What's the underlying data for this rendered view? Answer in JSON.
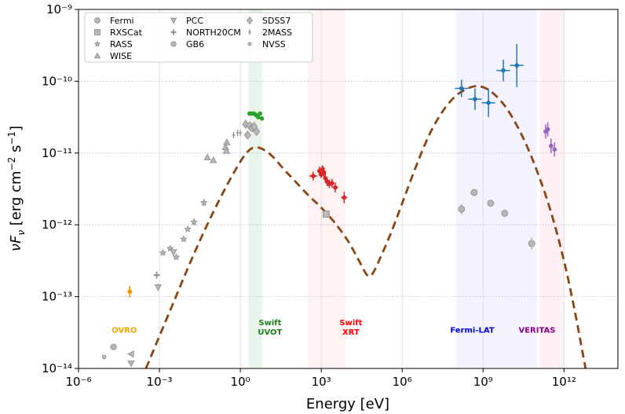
{
  "chart_data": {
    "type": "scatter",
    "xlabel": "Energy [eV]",
    "ylabel_parts": {
      "a": "νF",
      "sub": "ν",
      "b": "  [erg cm",
      "sup1": "−2",
      "c": " s",
      "sup2": "−1",
      "d": "]"
    },
    "x_log_range": [
      -6,
      14
    ],
    "y_log_range": [
      -14,
      -9
    ],
    "x_ticks": [
      {
        "exp": -6,
        "label": "10⁻⁶"
      },
      {
        "exp": -3,
        "label": "10⁻³"
      },
      {
        "exp": 0,
        "label": "10⁰"
      },
      {
        "exp": 3,
        "label": "10³"
      },
      {
        "exp": 6,
        "label": "10⁶"
      },
      {
        "exp": 9,
        "label": "10⁹"
      },
      {
        "exp": 12,
        "label": "10¹²"
      }
    ],
    "y_ticks": [
      {
        "exp": -14,
        "label": "10⁻¹⁴"
      },
      {
        "exp": -13,
        "label": "10⁻¹³"
      },
      {
        "exp": -12,
        "label": "10⁻¹²"
      },
      {
        "exp": -11,
        "label": "10⁻¹¹"
      },
      {
        "exp": -10,
        "label": "10⁻¹⁰"
      },
      {
        "exp": -9,
        "label": "10⁻⁹"
      }
    ],
    "grid": true,
    "legend_position": "top-left",
    "legend": [
      {
        "label": "Fermi",
        "marker": "circle"
      },
      {
        "label": "PCC",
        "marker": "down-tri"
      },
      {
        "label": "SDSS7",
        "marker": "diamond"
      },
      {
        "label": "RXSCat",
        "marker": "square"
      },
      {
        "label": "NORTH20CM",
        "marker": "plus"
      },
      {
        "label": "2MASS",
        "marker": "vline"
      },
      {
        "label": "RASS",
        "marker": "star"
      },
      {
        "label": "GB6",
        "marker": "hexagon"
      },
      {
        "label": "NVSS",
        "marker": "dot"
      },
      {
        "label": "WISE",
        "marker": "up-tri"
      }
    ],
    "bands": [
      {
        "label_lines": [
          "Swift",
          "UVOT"
        ],
        "x_log": [
          0.3,
          0.8
        ],
        "fill": "#2ca02c",
        "opacity": 0.1,
        "text_color": "#1a7f1a",
        "text_x_log": 1.1,
        "text_y_log": -13.4
      },
      {
        "label_lines": [
          "Swift",
          "XRT"
        ],
        "x_log": [
          2.5,
          3.9
        ],
        "fill": "#ff4d4d",
        "opacity": 0.07,
        "text_color": "#ff0000",
        "text_x_log": 4.1,
        "text_y_log": -13.4
      },
      {
        "label_lines": [
          "Fermi-LAT"
        ],
        "x_log": [
          8.0,
          11.0
        ],
        "fill": "#6666ff",
        "opacity": 0.08,
        "text_color": "#0000dd",
        "text_x_log": 8.6,
        "text_y_log": -13.5
      },
      {
        "label_lines": [
          "VERITAS"
        ],
        "x_log": [
          11.1,
          12.0
        ],
        "fill": "#ff6b9a",
        "opacity": 0.1,
        "text_color": "#8b008b",
        "text_x_log": 11.0,
        "text_y_log": -13.5
      }
    ],
    "band_labels_extra": [
      {
        "text": "OVRO",
        "color": "#ffa500",
        "text_x_log": -4.3,
        "text_y_log": -13.5
      }
    ],
    "model_curve": {
      "color": "#8b4513",
      "points": [
        [
          -3.5,
          -14.0
        ],
        [
          -3.0,
          -13.55
        ],
        [
          -2.5,
          -13.1
        ],
        [
          -2.0,
          -12.65
        ],
        [
          -1.5,
          -12.22
        ],
        [
          -1.0,
          -11.82
        ],
        [
          -0.5,
          -11.45
        ],
        [
          0.0,
          -11.12
        ],
        [
          0.3,
          -10.97
        ],
        [
          0.55,
          -10.92
        ],
        [
          0.85,
          -10.95
        ],
        [
          1.2,
          -11.05
        ],
        [
          1.6,
          -11.22
        ],
        [
          2.0,
          -11.38
        ],
        [
          2.5,
          -11.58
        ],
        [
          3.0,
          -11.76
        ],
        [
          3.5,
          -11.97
        ],
        [
          4.0,
          -12.23
        ],
        [
          4.4,
          -12.5
        ],
        [
          4.7,
          -12.7
        ],
        [
          4.9,
          -12.68
        ],
        [
          5.2,
          -12.45
        ],
        [
          5.6,
          -12.1
        ],
        [
          6.0,
          -11.7
        ],
        [
          6.5,
          -11.2
        ],
        [
          7.0,
          -10.75
        ],
        [
          7.5,
          -10.42
        ],
        [
          8.0,
          -10.2
        ],
        [
          8.5,
          -10.09
        ],
        [
          8.85,
          -10.07
        ],
        [
          9.2,
          -10.12
        ],
        [
          9.6,
          -10.25
        ],
        [
          10.0,
          -10.45
        ],
        [
          10.5,
          -10.8
        ],
        [
          11.0,
          -11.25
        ],
        [
          11.5,
          -11.8
        ],
        [
          12.0,
          -12.5
        ],
        [
          12.4,
          -13.2
        ],
        [
          12.7,
          -13.8
        ],
        [
          12.8,
          -14.0
        ]
      ]
    },
    "archival_points": [
      {
        "catalog": "NVSS",
        "marker": "dot",
        "x": -5.05,
        "y": -13.84,
        "yerr": 0.0
      },
      {
        "catalog": "GB6",
        "marker": "hexagon",
        "x": -4.7,
        "y": -13.7,
        "yerr": 0.0
      },
      {
        "catalog": "PCC",
        "marker": "down-tri",
        "x": -4.05,
        "y": -13.93,
        "yerr": 0.0
      },
      {
        "catalog": "PCC",
        "marker": "left-tri",
        "x": -4.05,
        "y": -13.8,
        "yerr": 0.0
      },
      {
        "catalog": "NORTH20CM",
        "marker": "plus",
        "x": -3.1,
        "y": -12.7,
        "yerr": 0.05
      },
      {
        "catalog": "PCC",
        "marker": "down-tri",
        "x": -3.05,
        "y": -12.87,
        "yerr": 0.05
      },
      {
        "catalog": "PCC",
        "marker": "star",
        "x": -2.87,
        "y": -12.39,
        "yerr": 0.0
      },
      {
        "catalog": "PCC",
        "marker": "star",
        "x": -2.6,
        "y": -12.33,
        "yerr": 0.0
      },
      {
        "catalog": "PCC",
        "marker": "down-tri",
        "x": -2.48,
        "y": -12.38,
        "yerr": 0.0
      },
      {
        "catalog": "PCC",
        "marker": "star",
        "x": -2.38,
        "y": -12.45,
        "yerr": 0.0
      },
      {
        "catalog": "PCC",
        "marker": "star",
        "x": -2.1,
        "y": -12.2,
        "yerr": 0.0
      },
      {
        "catalog": "PCC",
        "marker": "star",
        "x": -1.95,
        "y": -12.06,
        "yerr": 0.0
      },
      {
        "catalog": "PCC",
        "marker": "star",
        "x": -1.72,
        "y": -11.96,
        "yerr": 0.05
      },
      {
        "catalog": "PCC",
        "marker": "star",
        "x": -1.35,
        "y": -11.69,
        "yerr": 0.05
      },
      {
        "catalog": "WISE",
        "marker": "up-tri",
        "x": -1.22,
        "y": -11.06,
        "yerr": 0.0
      },
      {
        "catalog": "WISE",
        "marker": "up-tri",
        "x": -1.0,
        "y": -11.1,
        "yerr": 0.0
      },
      {
        "catalog": "WISE",
        "marker": "up-tri",
        "x": -0.55,
        "y": -10.92,
        "yerr": 0.0
      },
      {
        "catalog": "WISE",
        "marker": "up-tri",
        "x": -0.52,
        "y": -10.97,
        "yerr": 0.0
      },
      {
        "catalog": "WISE",
        "marker": "up-tri",
        "x": -0.5,
        "y": -10.85,
        "yerr": 0.0
      },
      {
        "catalog": "2MASS",
        "marker": "vline",
        "x": -0.25,
        "y": -10.75,
        "yerr": 0.0
      },
      {
        "catalog": "2MASS",
        "marker": "vline",
        "x": -0.1,
        "y": -10.72,
        "yerr": 0.0
      },
      {
        "catalog": "2MASS",
        "marker": "vline",
        "x": 0.0,
        "y": -10.72,
        "yerr": 0.0
      },
      {
        "catalog": "SDSS7",
        "marker": "diamond",
        "x": 0.2,
        "y": -10.6,
        "yerr": 0.0
      },
      {
        "catalog": "SDSS7",
        "marker": "diamond",
        "x": 0.27,
        "y": -10.75,
        "yerr": 0.0
      },
      {
        "catalog": "SDSS7",
        "marker": "diamond",
        "x": 0.35,
        "y": -10.62,
        "yerr": 0.0
      },
      {
        "catalog": "SDSS7",
        "marker": "diamond",
        "x": 0.43,
        "y": -10.65,
        "yerr": 0.0
      },
      {
        "catalog": "SDSS7",
        "marker": "diamond",
        "x": 0.51,
        "y": -10.63,
        "yerr": 0.0
      },
      {
        "catalog": "SDSS7",
        "marker": "diamond",
        "x": 0.6,
        "y": -10.7,
        "yerr": 0.0
      },
      {
        "catalog": "RXSCat",
        "marker": "square",
        "x": 3.18,
        "y": -11.85,
        "yerr": 0.0
      },
      {
        "catalog": "Fermi",
        "marker": "circle",
        "x": 8.2,
        "y": -11.78,
        "yerr": 0.07
      },
      {
        "catalog": "Fermi",
        "marker": "circle",
        "x": 8.67,
        "y": -11.55,
        "yerr": 0.0
      },
      {
        "catalog": "Fermi",
        "marker": "circle",
        "x": 9.28,
        "y": -11.7,
        "yerr": 0.0
      },
      {
        "catalog": "Fermi",
        "marker": "circle",
        "x": 9.8,
        "y": -11.84,
        "yerr": 0.0
      },
      {
        "catalog": "Fermi",
        "marker": "circle",
        "x": 10.8,
        "y": -12.26,
        "yerr": 0.08
      }
    ],
    "data_series": [
      {
        "band": "OVRO",
        "color": "#ff8c00",
        "points": [
          {
            "x": -4.1,
            "y": -12.93,
            "yerr": 0.08,
            "xerr": 0.0
          }
        ]
      },
      {
        "band": "Swift UVOT",
        "color": "#2ca02c",
        "points": [
          {
            "x": 0.34,
            "y": -10.45,
            "yerr": 0.0,
            "xerr": 0.0
          },
          {
            "x": 0.42,
            "y": -10.45,
            "yerr": 0.0,
            "xerr": 0.0
          },
          {
            "x": 0.5,
            "y": -10.45,
            "yerr": 0.0,
            "xerr": 0.0
          },
          {
            "x": 0.58,
            "y": -10.47,
            "yerr": 0.0,
            "xerr": 0.0
          },
          {
            "x": 0.66,
            "y": -10.5,
            "yerr": 0.0,
            "xerr": 0.0
          },
          {
            "x": 0.73,
            "y": -10.45,
            "yerr": 0.0,
            "xerr": 0.0
          },
          {
            "x": 0.8,
            "y": -10.52,
            "yerr": 0.0,
            "xerr": 0.0
          }
        ]
      },
      {
        "band": "Swift XRT",
        "color": "#d62728",
        "points": [
          {
            "x": 2.7,
            "y": -11.32,
            "yerr": 0.06,
            "xerr": 0.15
          },
          {
            "x": 2.93,
            "y": -11.25,
            "yerr": 0.06,
            "xerr": 0.08
          },
          {
            "x": 3.0,
            "y": -11.3,
            "yerr": 0.05,
            "xerr": 0.06
          },
          {
            "x": 3.05,
            "y": -11.22,
            "yerr": 0.05,
            "xerr": 0.06
          },
          {
            "x": 3.1,
            "y": -11.27,
            "yerr": 0.06,
            "xerr": 0.06
          },
          {
            "x": 3.15,
            "y": -11.35,
            "yerr": 0.06,
            "xerr": 0.07
          },
          {
            "x": 3.22,
            "y": -11.4,
            "yerr": 0.06,
            "xerr": 0.07
          },
          {
            "x": 3.3,
            "y": -11.43,
            "yerr": 0.06,
            "xerr": 0.08
          },
          {
            "x": 3.4,
            "y": -11.42,
            "yerr": 0.06,
            "xerr": 0.08
          },
          {
            "x": 3.52,
            "y": -11.48,
            "yerr": 0.07,
            "xerr": 0.1
          },
          {
            "x": 3.85,
            "y": -11.62,
            "yerr": 0.08,
            "xerr": 0.12
          }
        ]
      },
      {
        "band": "Fermi-LAT",
        "color": "#1f77b4",
        "points": [
          {
            "x": 8.2,
            "y": -10.1,
            "yerr": 0.12,
            "xerr": 0.25
          },
          {
            "x": 8.7,
            "y": -10.25,
            "yerr": 0.15,
            "xerr": 0.25
          },
          {
            "x": 9.2,
            "y": -10.3,
            "yerr": 0.2,
            "xerr": 0.25
          },
          {
            "x": 9.75,
            "y": -9.85,
            "yerr": 0.15,
            "xerr": 0.25
          },
          {
            "x": 10.25,
            "y": -9.78,
            "yerr": 0.3,
            "xerr": 0.25
          }
        ]
      },
      {
        "band": "VERITAS",
        "color": "#9467bd",
        "points": [
          {
            "x": 11.32,
            "y": -10.7,
            "yerr": 0.1,
            "xerr": 0.05
          },
          {
            "x": 11.4,
            "y": -10.67,
            "yerr": 0.1,
            "xerr": 0.05
          },
          {
            "x": 11.52,
            "y": -10.9,
            "yerr": 0.1,
            "xerr": 0.08
          },
          {
            "x": 11.65,
            "y": -10.95,
            "yerr": 0.1,
            "xerr": 0.08
          }
        ]
      }
    ]
  }
}
